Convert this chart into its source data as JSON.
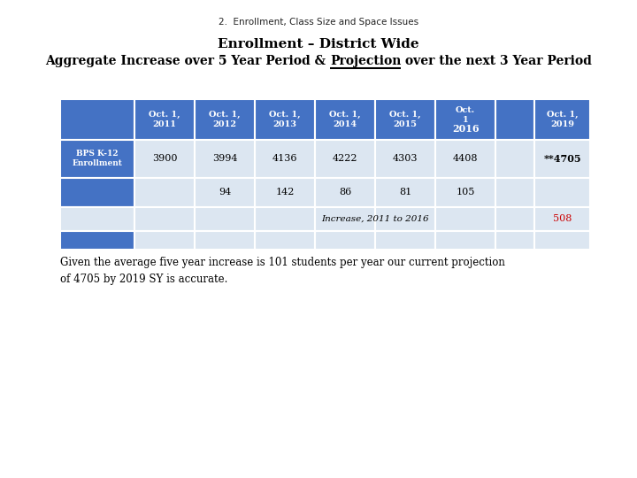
{
  "subtitle": "2.  Enrollment, Class Size and Space Issues",
  "title_line1": "Enrollment – District Wide",
  "title_line2": "Aggregate Increase over 5 Year Period & Projection over the next 3 Year Period",
  "footer": "Given the average five year increase is 101 students per year our current projection\nof 4705 by 2019 SY is accurate.",
  "col_headers": [
    "Oct. 1,\n2011",
    "Oct. 1,\n2012",
    "Oct. 1,\n2013",
    "Oct. 1,\n2014",
    "Oct. 1,\n2015",
    "Oct.\n1\n2016",
    "",
    "Oct. 1,\n2019"
  ],
  "row1_label": "BPS K-12\nEnrollment",
  "row1_values": [
    "3900",
    "3994",
    "4136",
    "4222",
    "4303",
    "4408",
    "",
    "**4705"
  ],
  "row2_values": [
    "",
    "94",
    "142",
    "86",
    "81",
    "105",
    "",
    ""
  ],
  "row3_508_color": "#cc0000",
  "header_bg": "#4472C4",
  "header_text": "#ffffff",
  "label_bg": "#4472C4",
  "label_text": "#ffffff",
  "light_bg": "#dce6f1",
  "blue_bg": "#4472C4",
  "background": "#ffffff"
}
